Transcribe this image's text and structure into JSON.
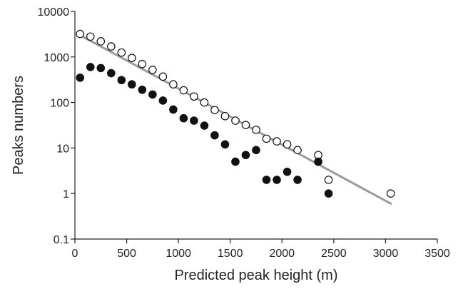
{
  "chart_data": {
    "type": "scatter",
    "title": "",
    "xlabel": "Predicted peak height (m)",
    "ylabel": "Peaks numbers",
    "x_scale": "linear",
    "y_scale": "log",
    "xlim": [
      0,
      3500
    ],
    "ylim": [
      0.1,
      10000
    ],
    "x_ticks": [
      0,
      500,
      1000,
      1500,
      2000,
      2500,
      3000,
      3500
    ],
    "x_tick_labels": [
      "0",
      "500",
      "1000",
      "1500",
      "2000",
      "2500",
      "3000",
      "3500"
    ],
    "y_ticks": [
      0.1,
      1,
      10,
      100,
      1000,
      10000
    ],
    "y_tick_labels": [
      "0.1",
      "1",
      "10",
      "100",
      "1000",
      "10000"
    ],
    "grid": false,
    "legend": "none",
    "series": [
      {
        "marker": "open-circle",
        "color": "#111111",
        "points": [
          [
            50,
            3200
          ],
          [
            150,
            2800
          ],
          [
            250,
            2200
          ],
          [
            350,
            1700
          ],
          [
            450,
            1250
          ],
          [
            550,
            950
          ],
          [
            650,
            700
          ],
          [
            750,
            520
          ],
          [
            850,
            370
          ],
          [
            950,
            250
          ],
          [
            1050,
            185
          ],
          [
            1150,
            135
          ],
          [
            1250,
            100
          ],
          [
            1350,
            68
          ],
          [
            1450,
            50
          ],
          [
            1550,
            40
          ],
          [
            1650,
            32
          ],
          [
            1750,
            25
          ],
          [
            1850,
            16
          ],
          [
            1950,
            14
          ],
          [
            2050,
            12
          ],
          [
            2150,
            9
          ],
          [
            2350,
            7
          ],
          [
            2450,
            2
          ],
          [
            3050,
            1
          ]
        ]
      },
      {
        "marker": "filled-circle",
        "color": "#111111",
        "points": [
          [
            50,
            350
          ],
          [
            150,
            600
          ],
          [
            250,
            570
          ],
          [
            350,
            440
          ],
          [
            450,
            310
          ],
          [
            550,
            250
          ],
          [
            650,
            190
          ],
          [
            750,
            150
          ],
          [
            850,
            110
          ],
          [
            950,
            70
          ],
          [
            1050,
            45
          ],
          [
            1150,
            40
          ],
          [
            1250,
            31
          ],
          [
            1350,
            19
          ],
          [
            1450,
            12
          ],
          [
            1550,
            5
          ],
          [
            1650,
            7
          ],
          [
            1750,
            9
          ],
          [
            1850,
            2
          ],
          [
            1950,
            2
          ],
          [
            2050,
            3
          ],
          [
            2150,
            2
          ],
          [
            2350,
            5
          ],
          [
            2450,
            1
          ]
        ]
      }
    ],
    "fit_line": {
      "color": "#9a9a9a",
      "points": [
        [
          50,
          3000
        ],
        [
          3050,
          0.6
        ]
      ]
    }
  }
}
